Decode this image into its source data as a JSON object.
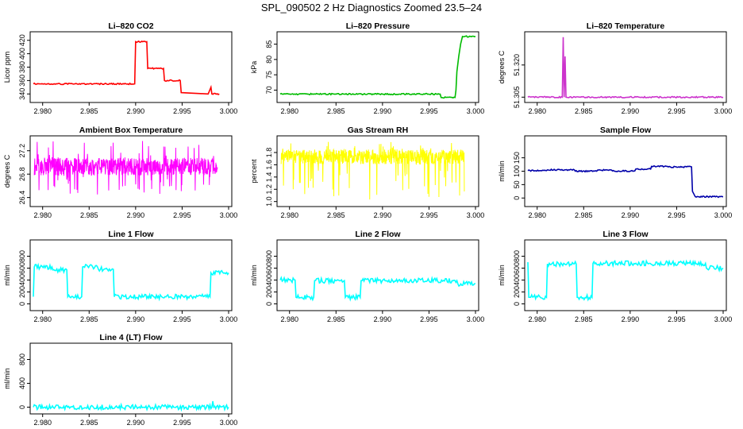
{
  "figure": {
    "title": "SPL_090502  2 Hz Diagnostics Zoomed 23.5–24"
  },
  "chart_data": [
    {
      "type": "line",
      "title": "Li–820 CO2",
      "xlabel": "",
      "ylabel": "Licor ppm",
      "color": "#ff0000",
      "xlim": [
        2.979,
        3.0
      ],
      "ylim": [
        332,
        428
      ],
      "xticks": [
        2.98,
        2.985,
        2.99,
        2.995,
        3.0
      ],
      "xtick_labels": [
        "2.980",
        "2.985",
        "2.990",
        "2.995",
        "3.000"
      ],
      "yticks": [
        340,
        360,
        380,
        400,
        420
      ],
      "ytick_labels": [
        "340",
        "360",
        "380",
        "400",
        "420"
      ],
      "x": [
        2.979,
        2.98,
        2.985,
        2.9899,
        2.99,
        2.9912,
        2.9913,
        2.993,
        2.9931,
        2.9948,
        2.9949,
        2.9978,
        2.9981,
        2.9982,
        2.999
      ],
      "y": [
        355,
        355,
        355,
        355,
        418,
        418,
        378,
        378,
        360,
        360,
        342,
        340,
        350,
        340,
        340
      ]
    },
    {
      "type": "line",
      "title": "Li–820 Pressure",
      "xlabel": "",
      "ylabel": "kPa",
      "color": "#00bb00",
      "xlim": [
        2.979,
        3.0
      ],
      "ylim": [
        67,
        88
      ],
      "xticks": [
        2.98,
        2.985,
        2.99,
        2.995,
        3.0
      ],
      "xtick_labels": [
        "2.980",
        "2.985",
        "2.990",
        "2.995",
        "3.000"
      ],
      "yticks": [
        70,
        75,
        80,
        85
      ],
      "ytick_labels": [
        "70",
        "75",
        "80",
        "85"
      ],
      "x": [
        2.979,
        2.99,
        2.9962,
        2.9963,
        2.9978,
        2.9979,
        2.998,
        2.9982,
        2.9984,
        2.9986,
        3.0
      ],
      "y": [
        68.7,
        68.7,
        68.7,
        67.6,
        67.6,
        70,
        76,
        81,
        85,
        87.5,
        87.5
      ]
    },
    {
      "type": "line",
      "title": "Li–820 Temperature",
      "xlabel": "",
      "ylabel": "degrees C",
      "color": "#cc33cc",
      "xlim": [
        2.979,
        3.0
      ],
      "ylim": [
        51.304,
        51.334
      ],
      "xticks": [
        2.98,
        2.985,
        2.99,
        2.995,
        3.0
      ],
      "xtick_labels": [
        "2.980",
        "2.985",
        "2.990",
        "2.995",
        "3.000"
      ],
      "yticks": [
        51.305,
        51.32
      ],
      "ytick_labels": [
        "51.305",
        "51.320"
      ],
      "x": [
        2.979,
        2.9827,
        2.9828,
        2.9829,
        2.983,
        2.9831,
        3.0
      ],
      "y": [
        51.305,
        51.305,
        51.333,
        51.305,
        51.324,
        51.305,
        51.305
      ]
    },
    {
      "type": "line",
      "title": "Ambient Box Temperature",
      "xlabel": "",
      "ylabel": "degrees C",
      "color": "#ff00ff",
      "xlim": [
        2.979,
        3.0
      ],
      "ylim": [
        26.3,
        27.4
      ],
      "xticks": [
        2.98,
        2.985,
        2.99,
        2.995,
        3.0
      ],
      "xtick_labels": [
        "2.980",
        "2.985",
        "2.990",
        "2.995",
        "3.000"
      ],
      "yticks": [
        26.4,
        26.8,
        27.2
      ],
      "ytick_labels": [
        "26.4",
        "26.8",
        "27.2"
      ],
      "noise": {
        "base": 26.93,
        "band": 0.15,
        "spike_lo": 26.45,
        "spike_hi": 27.38
      }
    },
    {
      "type": "line",
      "title": "Gas Stream RH",
      "xlabel": "",
      "ylabel": "percent",
      "color": "#ffff00",
      "xlim": [
        2.979,
        3.0
      ],
      "ylim": [
        0.97,
        2.02
      ],
      "xticks": [
        2.98,
        2.985,
        2.99,
        2.995,
        3.0
      ],
      "xtick_labels": [
        "2.980",
        "2.985",
        "2.990",
        "2.995",
        "3.000"
      ],
      "yticks": [
        1.0,
        1.2,
        1.4,
        1.6,
        1.8
      ],
      "ytick_labels": [
        "1.0",
        "1.2",
        "1.4",
        "1.6",
        "1.8"
      ],
      "noise": {
        "base": 1.73,
        "band": 0.12,
        "spike_lo": 1.03,
        "spike_hi": 1.98
      }
    },
    {
      "type": "line",
      "title": "Sample Flow",
      "xlabel": "",
      "ylabel": "ml/min",
      "color": "#0000aa",
      "xlim": [
        2.979,
        3.0
      ],
      "ylim": [
        -20,
        220
      ],
      "xticks": [
        2.98,
        2.985,
        2.99,
        2.995,
        3.0
      ],
      "xtick_labels": [
        "2.980",
        "2.985",
        "2.990",
        "2.995",
        "3.000"
      ],
      "yticks": [
        0,
        50,
        100,
        150
      ],
      "ytick_labels": [
        "0",
        "50",
        "100",
        "150"
      ],
      "x": [
        2.979,
        2.981,
        2.9811,
        2.984,
        2.9841,
        2.9864,
        2.9865,
        2.988,
        2.9881,
        2.9905,
        2.9906,
        2.9922,
        2.9923,
        2.994,
        2.9941,
        2.9966,
        2.9967,
        2.997,
        3.0
      ],
      "y": [
        102,
        102,
        105,
        105,
        100,
        100,
        104,
        104,
        101,
        101,
        108,
        108,
        118,
        118,
        116,
        116,
        25,
        5,
        5
      ]
    },
    {
      "type": "line",
      "title": "Line 1 Flow",
      "xlabel": "",
      "ylabel": "ml/min",
      "color": "#00ffff",
      "xlim": [
        2.979,
        3.0
      ],
      "ylim": [
        -60,
        1020
      ],
      "xticks": [
        2.98,
        2.985,
        2.99,
        2.995,
        3.0
      ],
      "xtick_labels": [
        "2.980",
        "2.985",
        "2.990",
        "2.995",
        "3.000"
      ],
      "yticks": [
        0,
        200,
        400,
        600,
        800
      ],
      "ytick_labels": [
        "0",
        "200",
        "400",
        "600",
        "800"
      ],
      "x": [
        2.979,
        2.9791,
        2.981,
        2.9811,
        2.9826,
        2.9827,
        2.9842,
        2.9843,
        2.9859,
        2.986,
        2.9876,
        2.9877,
        2.998,
        2.9981,
        3.0
      ],
      "y": [
        120,
        620,
        620,
        570,
        570,
        120,
        120,
        620,
        620,
        580,
        580,
        120,
        120,
        520,
        520
      ]
    },
    {
      "type": "line",
      "title": "Line 2 Flow",
      "xlabel": "",
      "ylabel": "ml/min",
      "color": "#00ffff",
      "xlim": [
        2.979,
        3.0
      ],
      "ylim": [
        -60,
        1020
      ],
      "xticks": [
        2.98,
        2.985,
        2.99,
        2.995,
        3.0
      ],
      "xtick_labels": [
        "2.980",
        "2.985",
        "2.990",
        "2.995",
        "3.000"
      ],
      "yticks": [
        0,
        200,
        400,
        600,
        800
      ],
      "ytick_labels": [
        "0",
        "200",
        "400",
        "600",
        "800"
      ],
      "x": [
        2.979,
        2.9806,
        2.9807,
        2.9826,
        2.9827,
        2.9859,
        2.986,
        2.9876,
        2.9877,
        2.998,
        2.9981,
        3.0
      ],
      "y": [
        400,
        400,
        110,
        110,
        390,
        390,
        110,
        110,
        390,
        390,
        340,
        340
      ]
    },
    {
      "type": "line",
      "title": "Line 3 Flow",
      "xlabel": "",
      "ylabel": "ml/min",
      "color": "#00ffff",
      "xlim": [
        2.979,
        3.0
      ],
      "ylim": [
        -60,
        1020
      ],
      "xticks": [
        2.98,
        2.985,
        2.99,
        2.995,
        3.0
      ],
      "xtick_labels": [
        "2.980",
        "2.985",
        "2.990",
        "2.995",
        "3.000"
      ],
      "yticks": [
        0,
        200,
        400,
        600,
        800
      ],
      "ytick_labels": [
        "0",
        "200",
        "400",
        "600",
        "800"
      ],
      "x": [
        2.979,
        2.9791,
        2.9793,
        2.981,
        2.9811,
        2.9842,
        2.9843,
        2.9859,
        2.986,
        2.9981,
        2.9982,
        3.0
      ],
      "y": [
        700,
        110,
        110,
        110,
        670,
        670,
        110,
        110,
        680,
        680,
        600,
        600
      ]
    },
    {
      "type": "line",
      "title": "Line 4 (LT) Flow",
      "xlabel": "",
      "ylabel": "ml/min",
      "color": "#00ffff",
      "xlim": [
        2.979,
        3.0
      ],
      "ylim": [
        -60,
        1020
      ],
      "xticks": [
        2.98,
        2.985,
        2.99,
        2.995,
        3.0
      ],
      "xtick_labels": [
        "2.980",
        "2.985",
        "2.990",
        "2.995",
        "3.000"
      ],
      "yticks": [
        0,
        400,
        800
      ],
      "ytick_labels": [
        "0",
        "400",
        "800"
      ],
      "x": [
        2.979,
        2.9982,
        2.9983,
        2.9984,
        3.0
      ],
      "y": [
        0,
        0,
        100,
        0,
        0
      ]
    }
  ]
}
